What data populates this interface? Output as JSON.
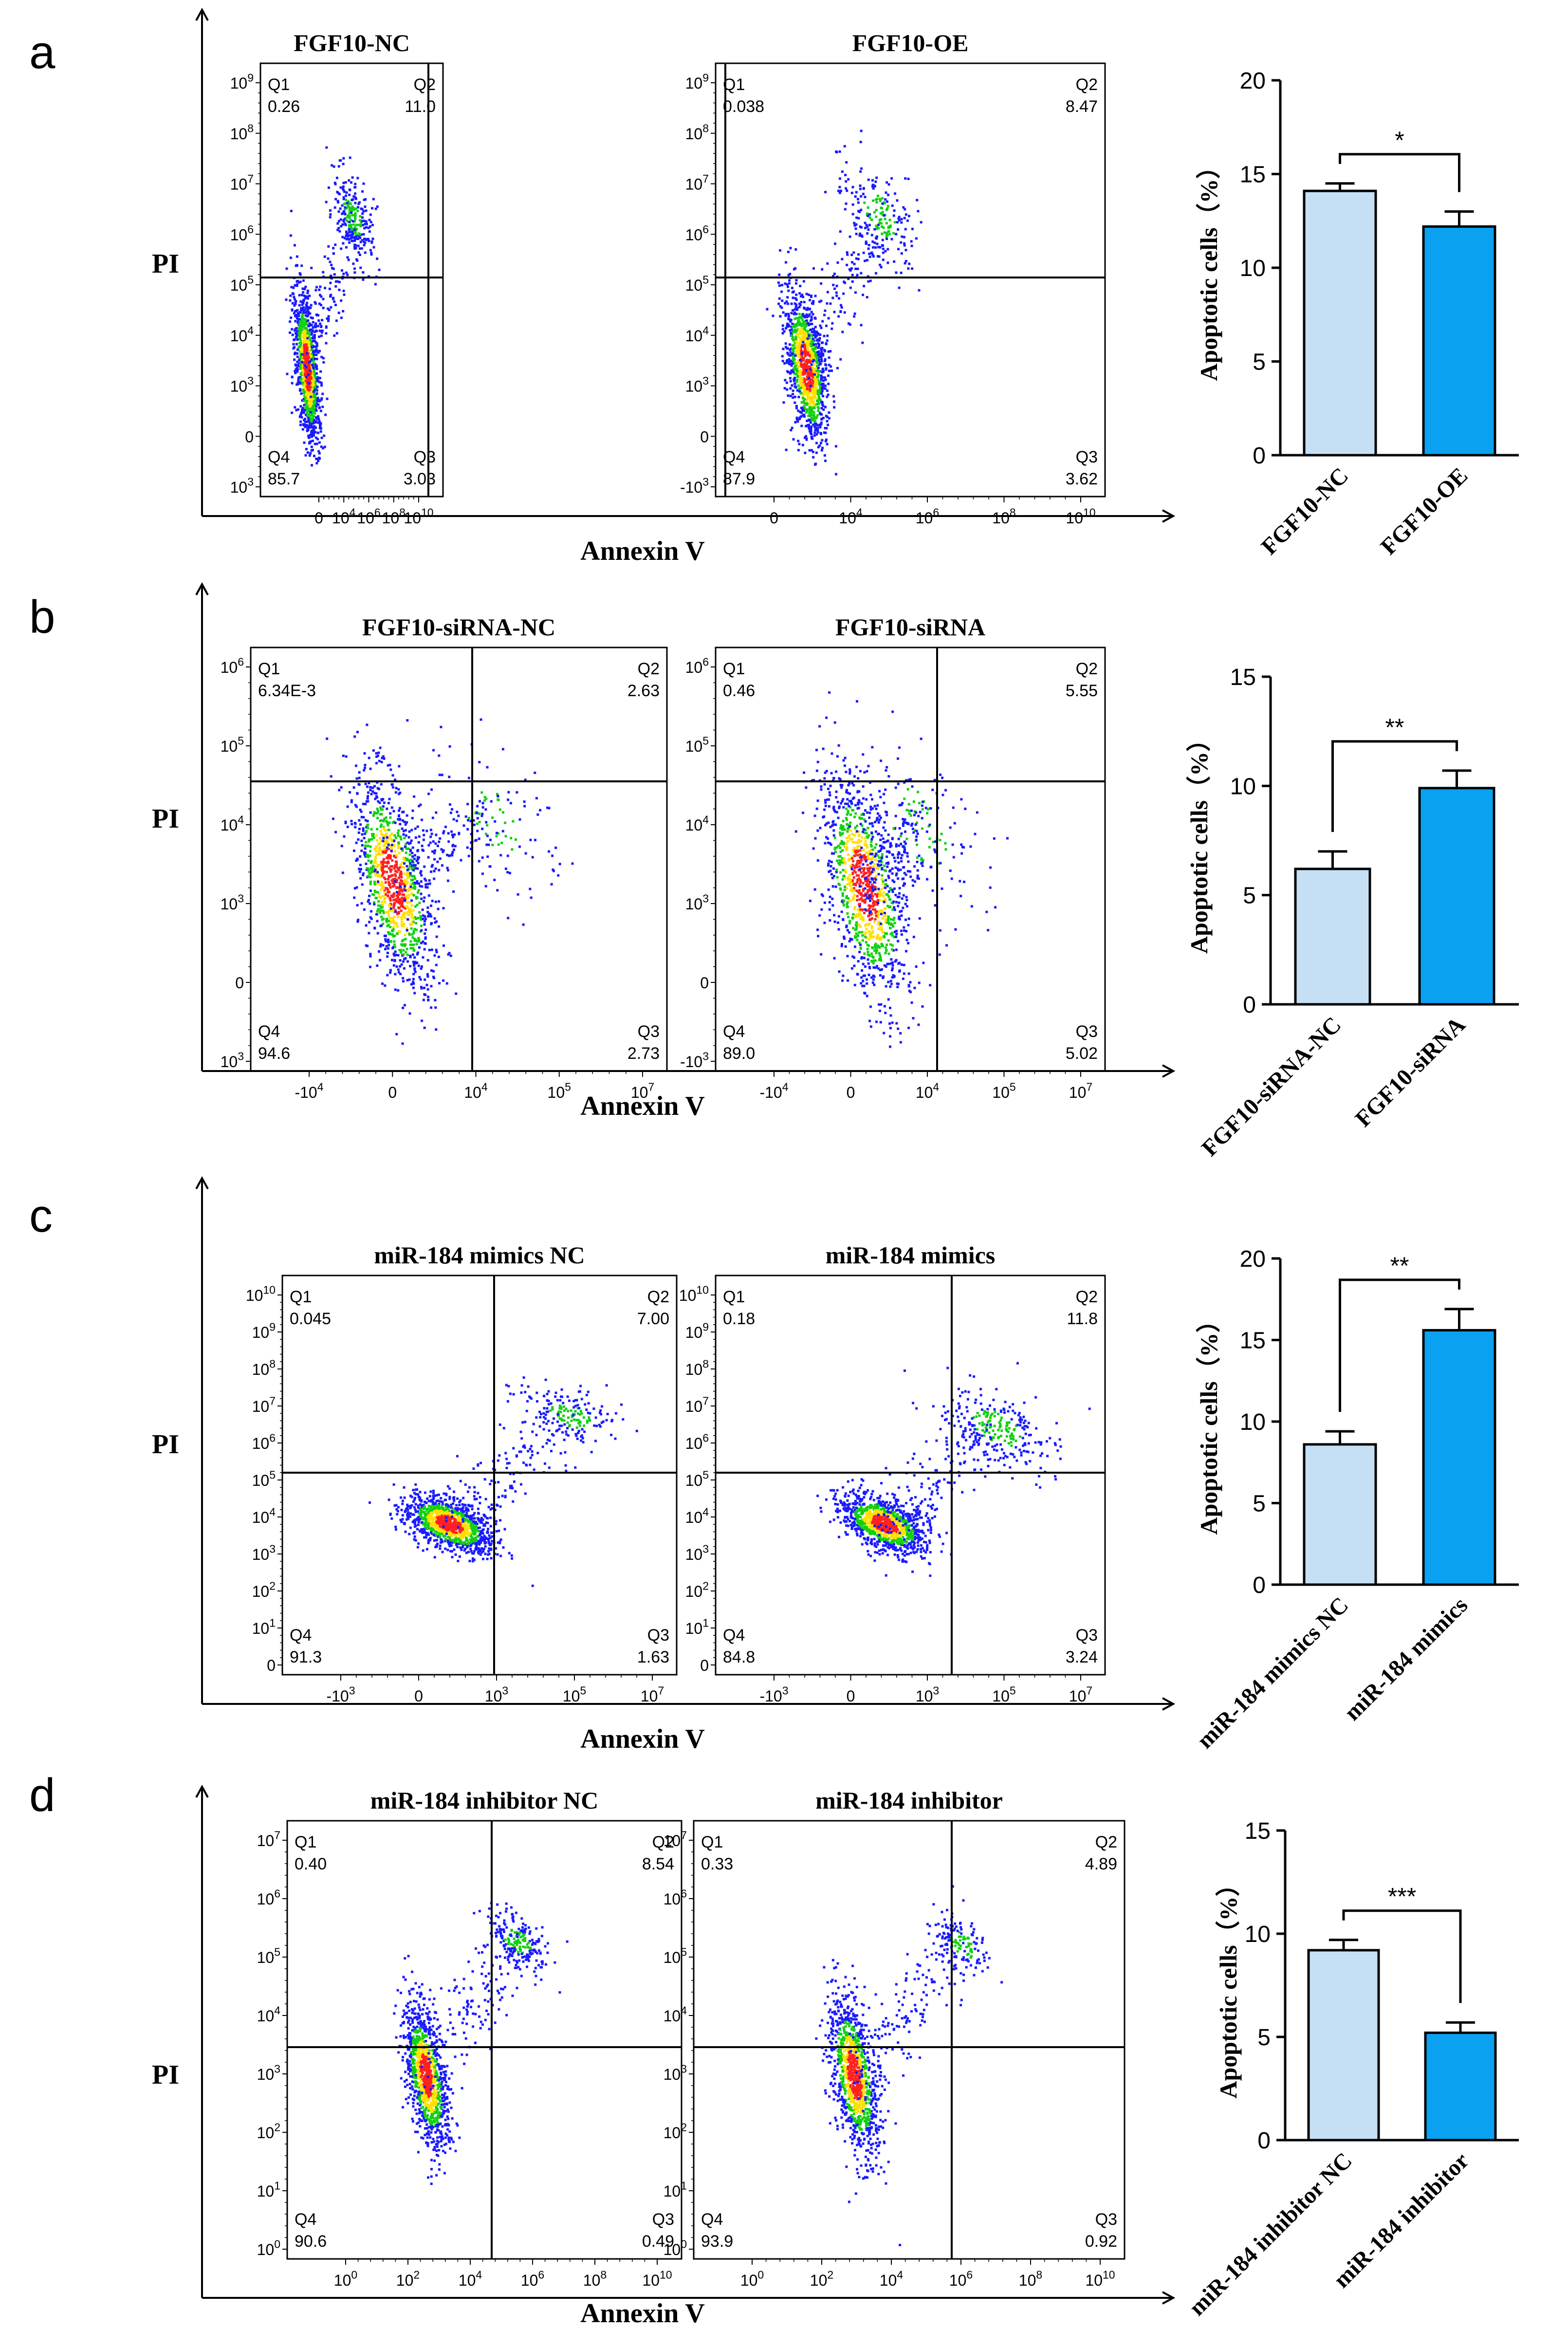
{
  "figure": {
    "colors": {
      "bar_control": "#c5e0f5",
      "bar_treatment": "#0aa2f0",
      "axis": "#000000",
      "dot_low": "#1a1aff",
      "dot_mid": "#12d012",
      "dot_high": "#ffe000",
      "dot_peak": "#ff2020"
    },
    "panels": [
      {
        "letter": "a",
        "y_label": "PI",
        "x_label": "Annexin V",
        "plots": [
          {
            "title": "FGF10-NC",
            "quadrants": {
              "Q1": "0.26",
              "Q2": "11.0",
              "Q3": "3.03",
              "Q4": "85.7"
            },
            "y_ticks": [
              "10^9",
              "10^8",
              "10^7",
              "10^6",
              "10^5",
              "10^4",
              "10^3",
              "0",
              "10^3"
            ],
            "x_ticks": [
              "0",
              "10^4",
              "10^6",
              "10^8",
              "10^10"
            ]
          },
          {
            "title": "FGF10-OE",
            "quadrants": {
              "Q1": "0.038",
              "Q2": "8.47",
              "Q3": "3.62",
              "Q4": "87.9"
            },
            "y_ticks": [
              "10^9",
              "10^8",
              "10^7",
              "10^6",
              "10^5",
              "10^4",
              "10^3",
              "0",
              "-10^3"
            ],
            "x_ticks": [
              "0",
              "10^4",
              "10^6",
              "10^8",
              "10^10"
            ]
          }
        ]
      },
      {
        "letter": "b",
        "y_label": "PI",
        "x_label": "Annexin V",
        "plots": [
          {
            "title": "FGF10-siRNA-NC",
            "quadrants": {
              "Q1": "6.34E-3",
              "Q2": "2.63",
              "Q3": "2.73",
              "Q4": "94.6"
            },
            "y_ticks": [
              "10^6",
              "10^5",
              "10^4",
              "10^3",
              "0",
              "10^3"
            ],
            "x_ticks": [
              "-10^4",
              "0",
              "10^4",
              "10^5",
              "10^7"
            ]
          },
          {
            "title": "FGF10-siRNA",
            "quadrants": {
              "Q1": "0.46",
              "Q2": "5.55",
              "Q3": "5.02",
              "Q4": "89.0"
            },
            "y_ticks": [
              "10^6",
              "10^5",
              "10^4",
              "10^3",
              "0",
              "-10^3"
            ],
            "x_ticks": [
              "-10^4",
              "0",
              "10^4",
              "10^5",
              "10^7"
            ]
          }
        ]
      },
      {
        "letter": "c",
        "y_label": "PI",
        "x_label": "Annexin V",
        "plots": [
          {
            "title": "miR-184 mimics NC",
            "quadrants": {
              "Q1": "0.045",
              "Q2": "7.00",
              "Q3": "1.63",
              "Q4": "91.3"
            },
            "y_ticks": [
              "10^10",
              "10^9",
              "10^8",
              "10^7",
              "10^6",
              "10^5",
              "10^4",
              "10^3",
              "10^2",
              "10^1",
              "0"
            ],
            "x_ticks": [
              "-10^3",
              "0",
              "10^3",
              "10^5",
              "10^7"
            ]
          },
          {
            "title": "miR-184 mimics",
            "quadrants": {
              "Q1": "0.18",
              "Q2": "11.8",
              "Q3": "3.24",
              "Q4": "84.8"
            },
            "y_ticks": [
              "10^10",
              "10^9",
              "10^8",
              "10^7",
              "10^6",
              "10^5",
              "10^4",
              "10^3",
              "10^2",
              "10^1",
              "0"
            ],
            "x_ticks": [
              "-10^3",
              "0",
              "10^3",
              "10^5",
              "10^7"
            ]
          }
        ]
      },
      {
        "letter": "d",
        "y_label": "PI",
        "x_label": "Annexin V",
        "plots": [
          {
            "title": "miR-184 inhibitor NC",
            "quadrants": {
              "Q1": "0.40",
              "Q2": "8.54",
              "Q3": "0.49",
              "Q4": "90.6"
            },
            "y_ticks": [
              "10^7",
              "10^6",
              "10^5",
              "10^4",
              "10^3",
              "10^2",
              "10^1",
              "10^0"
            ],
            "x_ticks": [
              "10^0",
              "10^2",
              "10^4",
              "10^6",
              "10^8",
              "10^10"
            ]
          },
          {
            "title": "miR-184 inhibitor",
            "quadrants": {
              "Q1": "0.33",
              "Q2": "4.89",
              "Q3": "0.92",
              "Q4": "93.9"
            },
            "y_ticks": [
              "10^7",
              "10^6",
              "10^5",
              "10^4",
              "10^3",
              "10^2",
              "10^1",
              "10^0"
            ],
            "x_ticks": [
              "10^0",
              "10^2",
              "10^4",
              "10^6",
              "10^8",
              "10^10"
            ]
          }
        ]
      }
    ]
  },
  "chart_data": [
    {
      "type": "bar",
      "panel": "a",
      "categories": [
        "FGF10-NC",
        "FGF10-OE"
      ],
      "values": [
        14.1,
        12.2
      ],
      "errors": [
        0.4,
        0.8
      ],
      "ylabel": "Apoptotic cells（%）",
      "ylim": [
        0,
        20
      ],
      "yticks": [
        0,
        5,
        10,
        15,
        20
      ],
      "significance": "*"
    },
    {
      "type": "bar",
      "panel": "b",
      "categories": [
        "FGF10-siRNA-NC",
        "FGF10-siRNA"
      ],
      "values": [
        6.2,
        9.9
      ],
      "errors": [
        0.8,
        0.8
      ],
      "ylabel": "Apoptotic cells（%）",
      "ylim": [
        0,
        15
      ],
      "yticks": [
        0,
        5,
        10,
        15
      ],
      "significance": "**"
    },
    {
      "type": "bar",
      "panel": "c",
      "categories": [
        "miR-184 mimics NC",
        "miR-184 mimics"
      ],
      "values": [
        8.6,
        15.6
      ],
      "errors": [
        0.8,
        1.3
      ],
      "ylabel": "Apoptotic cells（%）",
      "ylim": [
        0,
        20
      ],
      "yticks": [
        0,
        5,
        10,
        15,
        20
      ],
      "significance": "**"
    },
    {
      "type": "bar",
      "panel": "d",
      "categories": [
        "miR-184 inhibitor NC",
        "miR-184 inhibitor"
      ],
      "values": [
        9.2,
        5.2
      ],
      "errors": [
        0.5,
        0.5
      ],
      "ylabel": "Apoptotic cells（%）",
      "ylim": [
        0,
        15
      ],
      "yticks": [
        0,
        5,
        10,
        15
      ],
      "significance": "***"
    }
  ]
}
